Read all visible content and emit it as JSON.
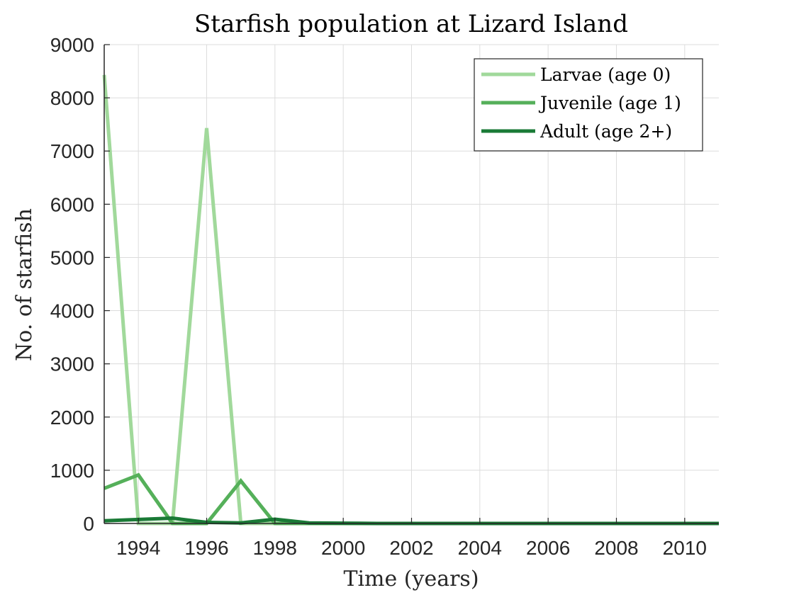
{
  "chart_data": {
    "type": "line",
    "title": "Starfish population at Lizard Island",
    "xlabel": "Time (years)",
    "ylabel": "No. of starfish",
    "xlim": [
      1993,
      2011
    ],
    "ylim": [
      0,
      9000
    ],
    "x_ticks": [
      1994,
      1996,
      1998,
      2000,
      2002,
      2004,
      2006,
      2008,
      2010
    ],
    "y_ticks": [
      0,
      1000,
      2000,
      3000,
      4000,
      5000,
      6000,
      7000,
      8000,
      9000
    ],
    "grid": true,
    "legend_position": "top-right",
    "x": [
      1993,
      1994,
      1995,
      1996,
      1997,
      1998,
      1999,
      2000,
      2001,
      2002,
      2003,
      2004,
      2005,
      2006,
      2007,
      2008,
      2009,
      2010,
      2011
    ],
    "series": [
      {
        "name": "Larvae (age 0)",
        "color": "#a1d99b",
        "values": [
          8430,
          0,
          0,
          7430,
          0,
          0,
          0,
          0,
          0,
          0,
          0,
          0,
          0,
          0,
          0,
          0,
          0,
          0,
          0
        ]
      },
      {
        "name": "Juvenile (age 1)",
        "color": "#55b05a",
        "values": [
          660,
          910,
          0,
          0,
          800,
          0,
          0,
          0,
          0,
          0,
          0,
          0,
          0,
          0,
          0,
          0,
          0,
          0,
          0
        ]
      },
      {
        "name": "Adult (age 2+)",
        "color": "#1a7a36",
        "values": [
          50,
          75,
          100,
          20,
          10,
          80,
          10,
          5,
          0,
          0,
          0,
          0,
          0,
          0,
          0,
          0,
          0,
          0,
          0
        ]
      }
    ]
  }
}
